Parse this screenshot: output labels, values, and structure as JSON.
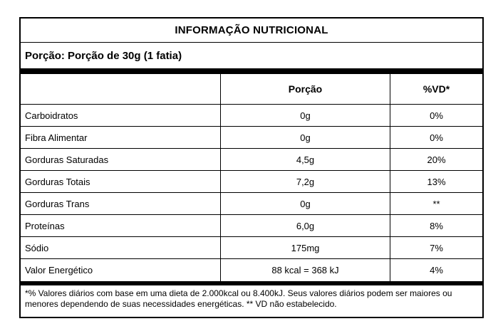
{
  "label": {
    "title": "INFORMAÇÃO NUTRICIONAL",
    "serving_line": "Porção: Porção de 30g (1 fatia)",
    "table": {
      "headers": {
        "nutrient": "",
        "portion": "Porção",
        "vd": "%VD*"
      },
      "rows": [
        {
          "nutrient": "Carboidratos",
          "portion": "0g",
          "vd": "0%"
        },
        {
          "nutrient": "Fibra Alimentar",
          "portion": "0g",
          "vd": "0%"
        },
        {
          "nutrient": "Gorduras Saturadas",
          "portion": "4,5g",
          "vd": "20%"
        },
        {
          "nutrient": "Gorduras Totais",
          "portion": "7,2g",
          "vd": "13%"
        },
        {
          "nutrient": "Gorduras Trans",
          "portion": "0g",
          "vd": "**"
        },
        {
          "nutrient": "Proteínas",
          "portion": "6,0g",
          "vd": "8%"
        },
        {
          "nutrient": "Sódio",
          "portion": "175mg",
          "vd": "7%"
        },
        {
          "nutrient": "Valor Energético",
          "portion": "88 kcal = 368 kJ",
          "vd": "4%"
        }
      ]
    },
    "footnote": "*% Valores diários com base em uma dieta de 2.000kcal ou 8.400kJ. Seus valores diários podem ser maiores ou menores dependendo de suas necessidades energéticas. ** VD não estabelecido.",
    "colors": {
      "background": "#ffffff",
      "border": "#000000",
      "text": "#000000"
    }
  }
}
